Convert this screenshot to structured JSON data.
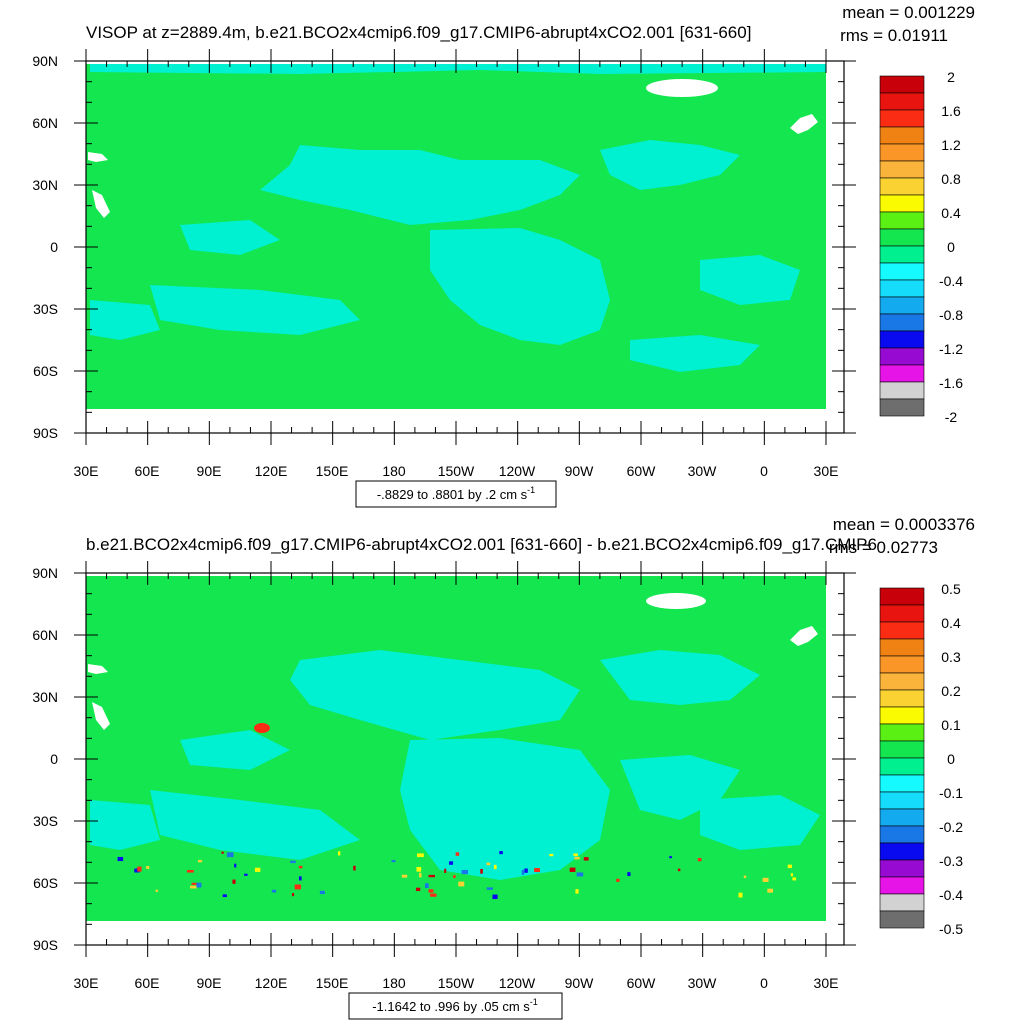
{
  "panels": [
    {
      "id": "top",
      "title": "VISOP at z=2889.4m, b.e21.BCO2x4cmip6.f09_g17.CMIP6-abrupt4xCO2.001 [631-660]",
      "mean_text": "mean = 0.001229",
      "rms_text": "rms = 0.01911",
      "range_text": "-.8829 to .8801 by .2 cm s",
      "range_sup": "-1",
      "colorbar": {
        "labels": [
          "2",
          "1.6",
          "1.2",
          "0.8",
          "0.4",
          "0",
          "-0.4",
          "-0.8",
          "-1.2",
          "-1.6",
          "-2"
        ],
        "colors": [
          "#c8000a",
          "#e8140f",
          "#fa2d14",
          "#f08214",
          "#fa9628",
          "#fab43c",
          "#fad232",
          "#fafa00",
          "#5af014",
          "#14e650",
          "#00f090",
          "#14faff",
          "#14dcfa",
          "#14aaf0",
          "#1978e6",
          "#0a0af0",
          "#960ad2",
          "#e614e6",
          "#d2d2d2",
          "#6e6e6e"
        ]
      }
    },
    {
      "id": "bottom",
      "title": "b.e21.BCO2x4cmip6.f09_g17.CMIP6-abrupt4xCO2.001 [631-660] - b.e21.BCO2x4cmip6.f09_g17.CMIP6",
      "mean_text": "mean = 0.0003376",
      "rms_text": "rms = 0.02773",
      "range_text": "-1.1642 to .996 by .05 cm s",
      "range_sup": "-1",
      "colorbar": {
        "labels": [
          "0.5",
          "0.4",
          "0.3",
          "0.2",
          "0.1",
          "0",
          "-0.1",
          "-0.2",
          "-0.3",
          "-0.4",
          "-0.5"
        ],
        "colors": [
          "#c8000a",
          "#e8140f",
          "#fa2d14",
          "#f08214",
          "#fa9628",
          "#fab43c",
          "#fad232",
          "#fafa00",
          "#5af014",
          "#14e650",
          "#00f090",
          "#14faff",
          "#14dcfa",
          "#14aaf0",
          "#1978e6",
          "#0a0af0",
          "#960ad2",
          "#e614e6",
          "#d2d2d2",
          "#6e6e6e"
        ]
      }
    }
  ],
  "axes": {
    "lat_labels": [
      "90N",
      "60N",
      "30N",
      "0",
      "30S",
      "60S",
      "90S"
    ],
    "lon_labels": [
      "30E",
      "60E",
      "90E",
      "120E",
      "150E",
      "180",
      "150W",
      "120W",
      "90W",
      "60W",
      "30W",
      "0",
      "30E"
    ]
  },
  "map_colors": {
    "ocean_base": "#14e650",
    "cyan_region": "#00f0d2",
    "missing": "#ffffff"
  }
}
